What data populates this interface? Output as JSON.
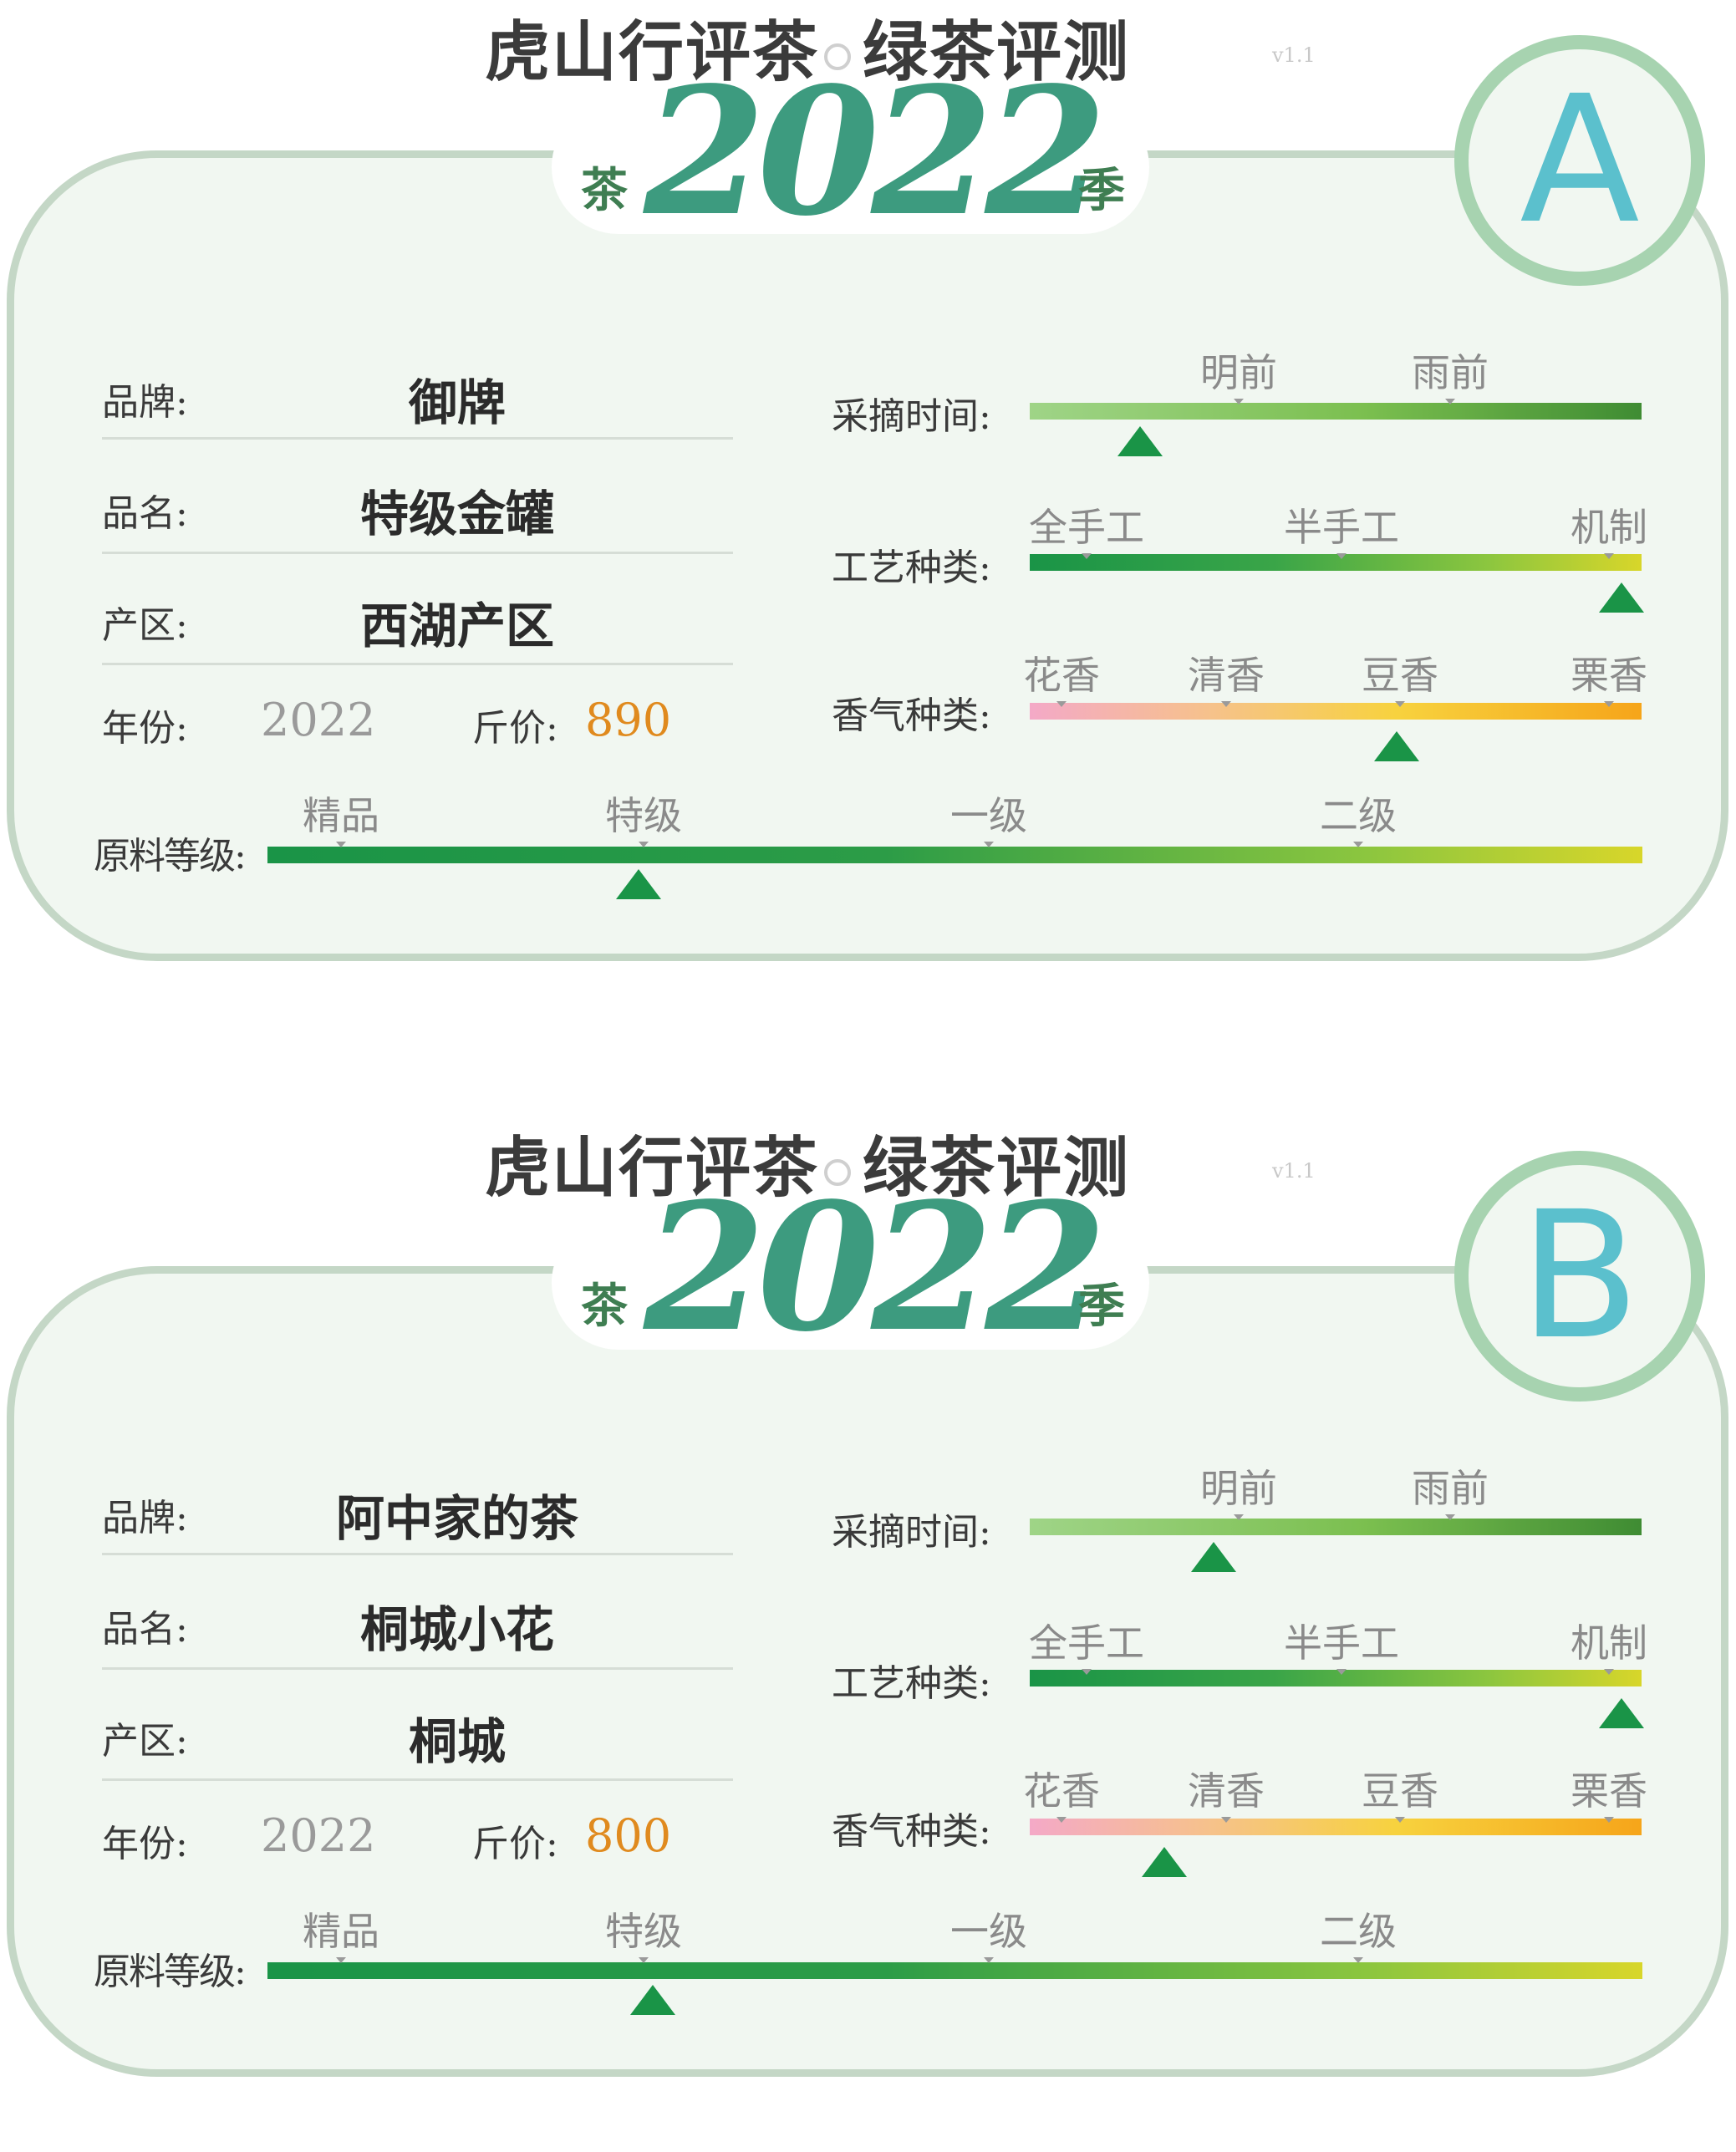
{
  "header": {
    "title_left": "虎山行评茶",
    "title_right": "绿茶评测",
    "version": "v1.1",
    "season_left": "茶",
    "year": "2022",
    "season_right": "季"
  },
  "labels": {
    "brand": "品牌:",
    "name": "品名:",
    "region": "产区:",
    "year": "年份:",
    "price": "斤价:",
    "harvest": "采摘时间:",
    "craft": "工艺种类:",
    "aroma": "香气种类:",
    "grade": "原料等级:"
  },
  "scales": {
    "harvest": [
      "明前",
      "雨前"
    ],
    "craft": [
      "全手工",
      "半手工",
      "机制"
    ],
    "aroma": [
      "花香",
      "清香",
      "豆香",
      "栗香"
    ],
    "grade": [
      "精品",
      "特级",
      "一级",
      "二级"
    ]
  },
  "colors": {
    "marker": "#1a9447",
    "price": "#e08a1e",
    "badge": "#5bc0cd",
    "year": "#3d9b7f"
  },
  "cards": [
    {
      "badge": "A",
      "brand": "御牌",
      "name": "特级金罐",
      "region": "西湖产区",
      "year": "2022",
      "price": "890",
      "levels": {
        "harvest": 0.18,
        "craft": 1.0,
        "aroma": 0.6,
        "grade": 0.27
      }
    },
    {
      "badge": "B",
      "brand": "阿中家的茶",
      "name": "桐城小花",
      "region": "桐城",
      "year": "2022",
      "price": "800",
      "levels": {
        "harvest": 0.3,
        "craft": 1.0,
        "aroma": 0.22,
        "grade": 0.28
      }
    }
  ]
}
